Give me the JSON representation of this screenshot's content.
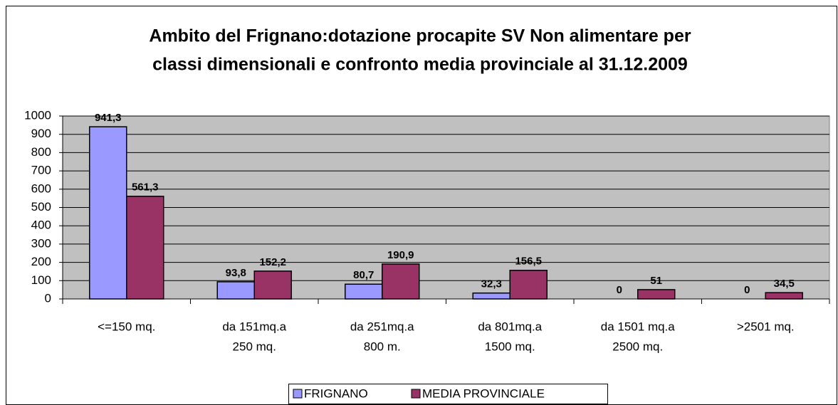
{
  "chart_data": {
    "type": "bar",
    "title": [
      "Ambito del Frignano:dotazione procapite  SV Non alimentare per",
      "classi dimensionali e confronto media provinciale al 31.12.2009"
    ],
    "categories": [
      [
        "<=150 mq."
      ],
      [
        "da 151mq.a",
        "250 mq."
      ],
      [
        "da 251mq.a",
        "800 m."
      ],
      [
        "da 801mq.a",
        "1500 mq."
      ],
      [
        "da 1501 mq.a",
        "2500 mq."
      ],
      [
        ">2501 mq."
      ]
    ],
    "series": [
      {
        "name": "FRIGNANO",
        "color": "#9999ff",
        "values": [
          941.3,
          93.8,
          80.7,
          32.3,
          0,
          0
        ],
        "value_labels": [
          "941,3",
          "93,8",
          "80,7",
          "32,3",
          "0",
          "0"
        ]
      },
      {
        "name": "MEDIA PROVINCIALE",
        "color": "#993366",
        "values": [
          561.3,
          152.2,
          190.9,
          156.5,
          51,
          34.5
        ],
        "value_labels": [
          "561,3",
          "152,2",
          "190,9",
          "156,5",
          "51",
          "34,5"
        ]
      }
    ],
    "ylim": [
      0,
      1000
    ],
    "yticks": [
      0,
      100,
      200,
      300,
      400,
      500,
      600,
      700,
      800,
      900,
      1000
    ],
    "grid": true,
    "plot_background": "#c0c0c0",
    "legend": "bottom"
  }
}
